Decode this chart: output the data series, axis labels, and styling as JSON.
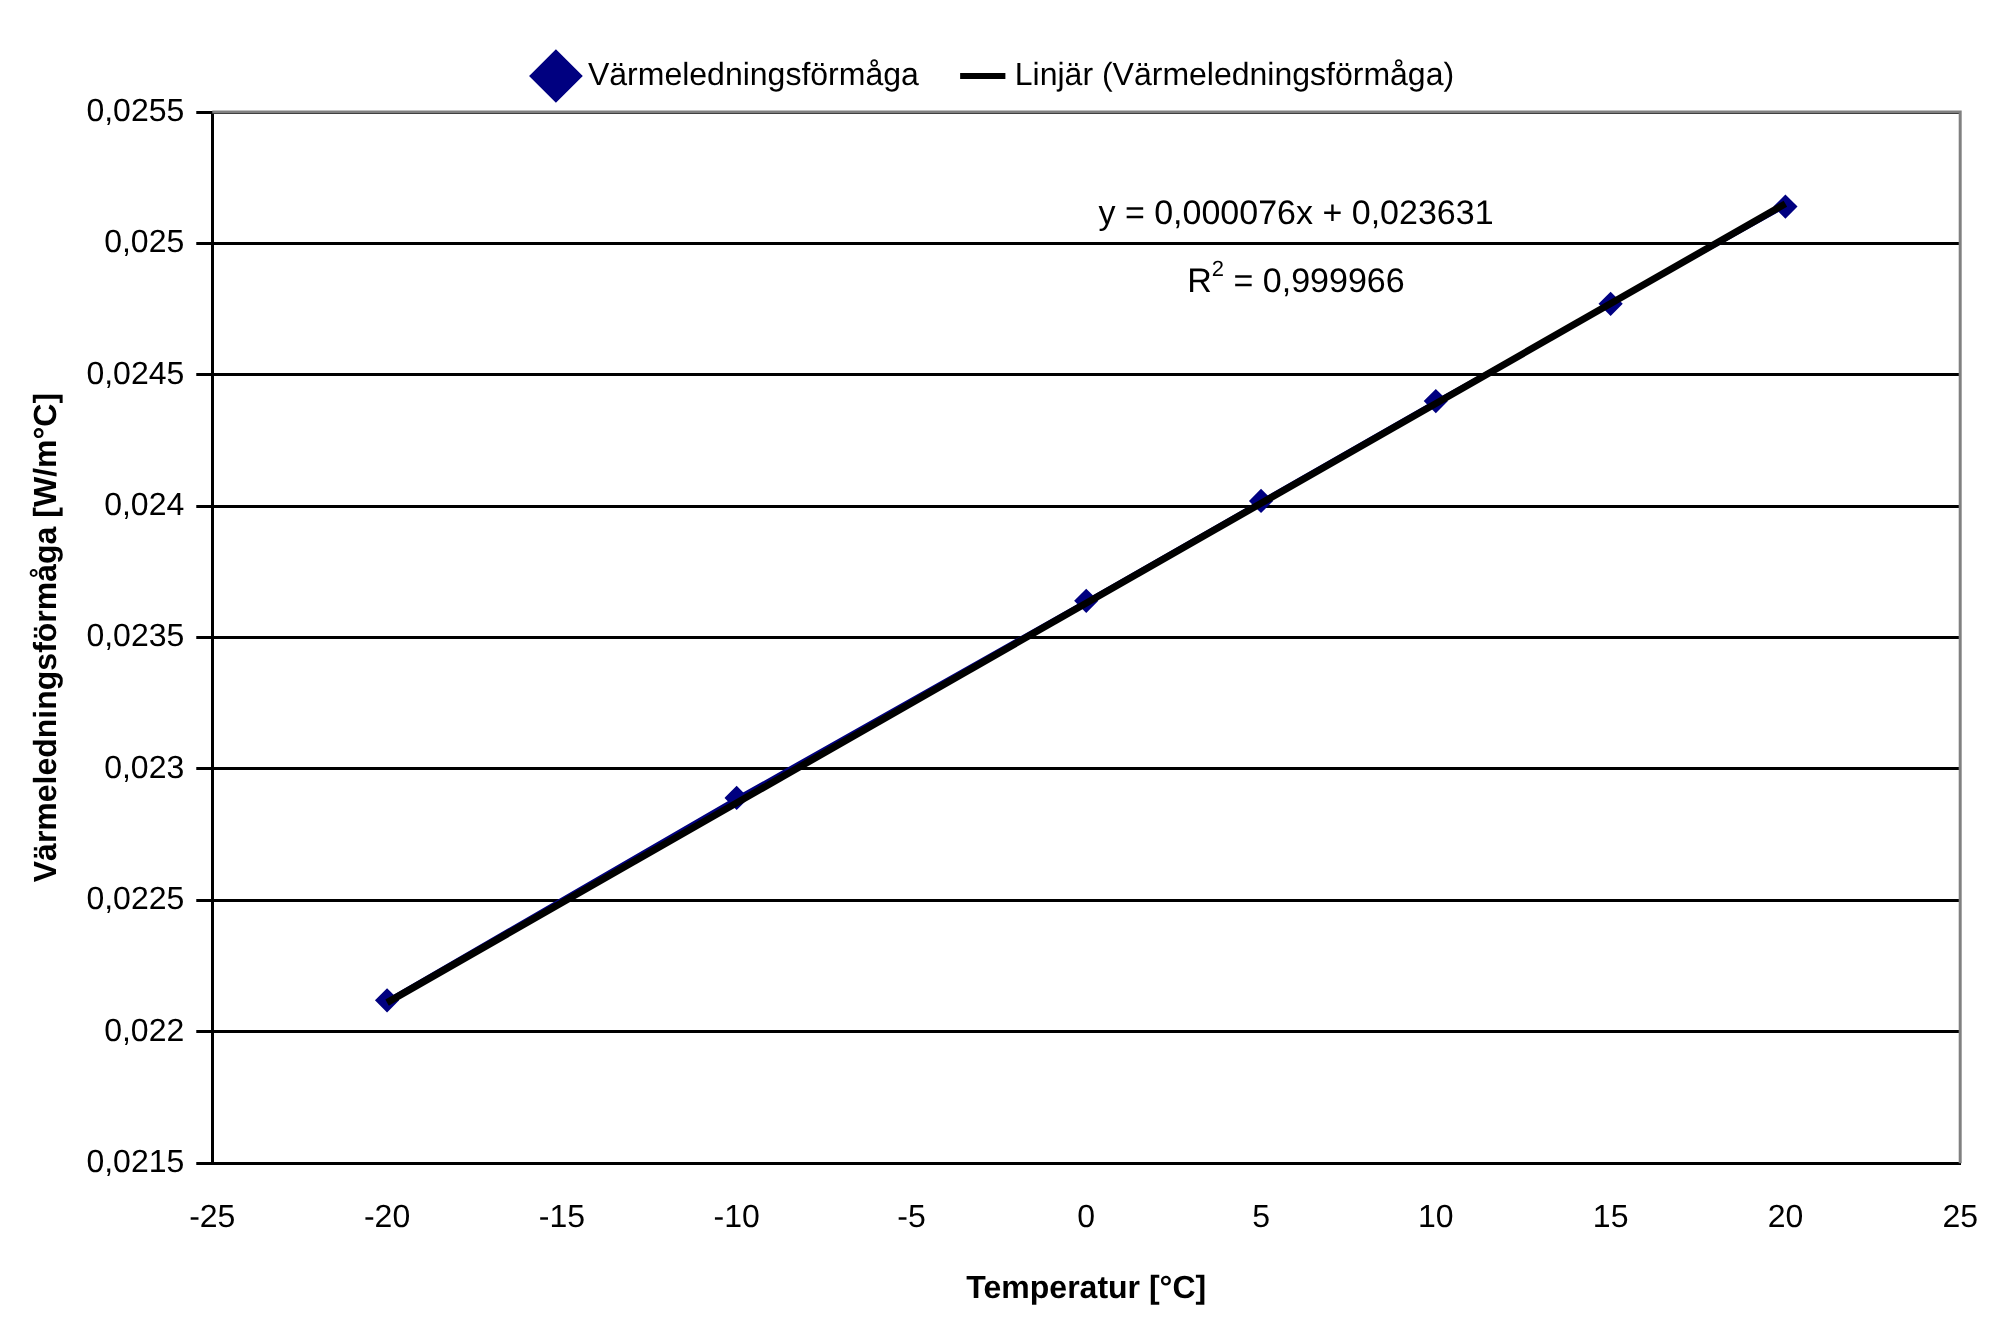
{
  "chart_data": {
    "type": "line",
    "xlabel": "Temperatur [°C]",
    "ylabel": "Värmeledningsförmåga [W/m°C]",
    "x": [
      -20,
      -10,
      0,
      5,
      10,
      15,
      20
    ],
    "series": [
      {
        "name": "Värmeledningsförmåga",
        "color": "#000080",
        "marker": "diamond",
        "values": [
          0.02212,
          0.02289,
          0.02364,
          0.02402,
          0.0244,
          0.02477,
          0.02514
        ]
      },
      {
        "name": "Linjär (Värmeledningsförmåga)",
        "color": "#000000",
        "marker": "none",
        "x": [
          -20,
          20
        ],
        "values": [
          0.022111,
          0.025151
        ]
      }
    ],
    "xlim": [
      -25,
      25
    ],
    "xticks": [
      -25,
      -20,
      -15,
      -10,
      -5,
      0,
      5,
      10,
      15,
      20,
      25
    ],
    "ylim": [
      0.0215,
      0.0255
    ],
    "yticks": [
      {
        "value": 0.0215,
        "label": "0,0215"
      },
      {
        "value": 0.022,
        "label": "0,022"
      },
      {
        "value": 0.0225,
        "label": "0,0225"
      },
      {
        "value": 0.023,
        "label": "0,023"
      },
      {
        "value": 0.0235,
        "label": "0,0235"
      },
      {
        "value": 0.024,
        "label": "0,024"
      },
      {
        "value": 0.0245,
        "label": "0,0245"
      },
      {
        "value": 0.025,
        "label": "0,025"
      },
      {
        "value": 0.0255,
        "label": "0,0255"
      }
    ],
    "grid": "y",
    "legend": "top",
    "annotations": [
      "y = 0,000076x + 0,023631",
      "R$^{2}$ = 0,999966"
    ]
  }
}
